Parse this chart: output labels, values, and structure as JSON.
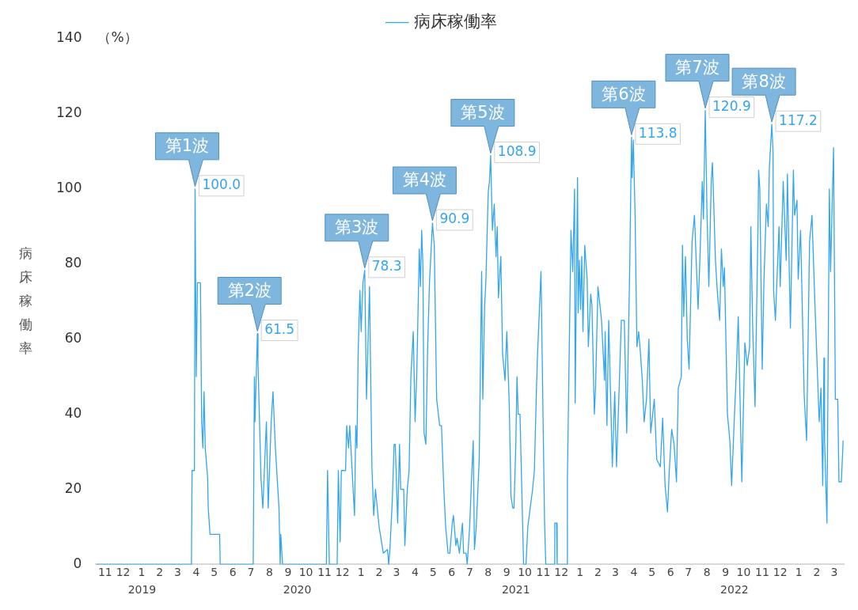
{
  "chart_data": {
    "type": "line",
    "ylabel": "病床稼働率",
    "legend": "top",
    "marker": "none",
    "xlim": [
      "2019-11-01",
      "2023-04-01"
    ],
    "xticks": [
      {
        "value": "2019-11-16",
        "label": "11"
      },
      {
        "value": "2019-12-16",
        "label": "12"
      },
      {
        "value": "2020-01-16",
        "label": "1"
      },
      {
        "value": "2020-02-15",
        "label": "2"
      },
      {
        "value": "2020-03-16",
        "label": "3"
      },
      {
        "value": "2020-04-16",
        "label": "4"
      },
      {
        "value": "2020-05-16",
        "label": "5"
      },
      {
        "value": "2020-06-16",
        "label": "6"
      },
      {
        "value": "2020-07-16",
        "label": "7"
      },
      {
        "value": "2020-08-16",
        "label": "8"
      },
      {
        "value": "2020-09-16",
        "label": "9"
      },
      {
        "value": "2020-10-16",
        "label": "10"
      },
      {
        "value": "2020-11-16",
        "label": "11"
      },
      {
        "value": "2020-12-16",
        "label": "12"
      },
      {
        "value": "2021-01-16",
        "label": "1"
      },
      {
        "value": "2021-02-15",
        "label": "2"
      },
      {
        "value": "2021-03-16",
        "label": "3"
      },
      {
        "value": "2021-04-16",
        "label": "4"
      },
      {
        "value": "2021-05-16",
        "label": "5"
      },
      {
        "value": "2021-06-16",
        "label": "6"
      },
      {
        "value": "2021-07-16",
        "label": "7"
      },
      {
        "value": "2021-08-16",
        "label": "8"
      },
      {
        "value": "2021-09-16",
        "label": "9"
      },
      {
        "value": "2021-10-16",
        "label": "10"
      },
      {
        "value": "2021-11-16",
        "label": "11"
      },
      {
        "value": "2021-12-16",
        "label": "12"
      },
      {
        "value": "2022-01-16",
        "label": "1"
      },
      {
        "value": "2022-02-15",
        "label": "2"
      },
      {
        "value": "2022-03-16",
        "label": "3"
      },
      {
        "value": "2022-04-16",
        "label": "4"
      },
      {
        "value": "2022-05-16",
        "label": "5"
      },
      {
        "value": "2022-06-16",
        "label": "6"
      },
      {
        "value": "2022-07-16",
        "label": "7"
      },
      {
        "value": "2022-08-16",
        "label": "8"
      },
      {
        "value": "2022-09-16",
        "label": "9"
      },
      {
        "value": "2022-10-16",
        "label": "10"
      },
      {
        "value": "2022-11-16",
        "label": "11"
      },
      {
        "value": "2022-12-16",
        "label": "12"
      },
      {
        "value": "2023-01-16",
        "label": "1"
      },
      {
        "value": "2023-02-15",
        "label": "2"
      },
      {
        "value": "2023-03-16",
        "label": "3"
      }
    ],
    "ylim": [
      0,
      140
    ],
    "yticks": [
      0,
      20,
      40,
      60,
      80,
      100,
      120,
      140
    ],
    "x2lim": [
      2019.08,
      2022.5
    ],
    "x2ticks": [
      {
        "value": 2019.29,
        "label": "2019"
      },
      2020,
      2021,
      2022
    ],
    "annotations": [
      "（%）",
      {
        "text": "第1波",
        "x": "2020-04-14",
        "y": 100
      },
      {
        "text": "第2波",
        "x": "2020-07-27",
        "y": 61.5
      },
      {
        "text": "第3波",
        "x": "2021-01-22",
        "y": 78.3
      },
      {
        "text": "第4波",
        "x": "2021-05-15",
        "y": 90.9
      },
      {
        "text": "第5波",
        "x": "2021-08-20",
        "y": 108.9
      },
      {
        "text": "第6波",
        "x": "2022-04-12",
        "y": 113.8
      },
      {
        "text": "第7波",
        "x": "2022-08-13",
        "y": 120.9
      },
      {
        "text": "第8波",
        "x": "2022-12-02",
        "y": 117.2
      }
    ],
    "series": [
      {
        "name": "病床稼働率",
        "color": "#33a6ee",
        "x": [
          "2019-11-01",
          "2020-04-08",
          "2020-04-09",
          "2020-04-13",
          "2020-04-14",
          "2020-04-16",
          "2020-04-18",
          "2020-04-23",
          "2020-04-25",
          "2020-04-27",
          "2020-04-29",
          "2020-05-01",
          "2020-05-05",
          "2020-05-06",
          "2020-05-09",
          "2020-05-25",
          "2020-05-26",
          "2020-07-20",
          "2020-07-22",
          "2020-07-23",
          "2020-07-27",
          "2020-07-28",
          "2020-08-02",
          "2020-08-05",
          "2020-08-11",
          "2020-08-14",
          "2020-08-19",
          "2020-08-22",
          "2020-08-26",
          "2020-09-01",
          "2020-09-03",
          "2020-09-04",
          "2020-09-07",
          "2020-11-19",
          "2020-11-21",
          "2020-11-24",
          "2020-12-07",
          "2020-12-09",
          "2020-12-12",
          "2020-12-14",
          "2020-12-21",
          "2020-12-23",
          "2020-12-26",
          "2020-12-28",
          "2021-01-05",
          "2021-01-07",
          "2021-01-09",
          "2021-01-11",
          "2021-01-14",
          "2021-01-16",
          "2021-01-19",
          "2021-01-22",
          "2021-01-25",
          "2021-01-30",
          "2021-02-03",
          "2021-02-06",
          "2021-02-09",
          "2021-02-15",
          "2021-02-22",
          "2021-03-01",
          "2021-03-03",
          "2021-03-05",
          "2021-03-09",
          "2021-03-12",
          "2021-03-14",
          "2021-03-18",
          "2021-03-21",
          "2021-03-23",
          "2021-03-28",
          "2021-03-30",
          "2021-04-03",
          "2021-04-06",
          "2021-04-09",
          "2021-04-13",
          "2021-04-16",
          "2021-04-19",
          "2021-04-23",
          "2021-04-25",
          "2021-04-27",
          "2021-04-29",
          "2021-05-01",
          "2021-05-04",
          "2021-05-07",
          "2021-05-10",
          "2021-05-15",
          "2021-05-18",
          "2021-05-22",
          "2021-05-27",
          "2021-05-30",
          "2021-06-03",
          "2021-06-06",
          "2021-06-10",
          "2021-06-13",
          "2021-06-17",
          "2021-06-19",
          "2021-06-23",
          "2021-06-25",
          "2021-06-29",
          "2021-07-04",
          "2021-07-06",
          "2021-07-10",
          "2021-07-12",
          "2021-07-16",
          "2021-07-19",
          "2021-07-22",
          "2021-07-24",
          "2021-07-27",
          "2021-08-01",
          "2021-08-05",
          "2021-08-07",
          "2021-08-10",
          "2021-08-12",
          "2021-08-16",
          "2021-08-18",
          "2021-08-20",
          "2021-08-23",
          "2021-08-26",
          "2021-08-29",
          "2021-08-31",
          "2021-09-02",
          "2021-09-06",
          "2021-09-09",
          "2021-09-13",
          "2021-09-16",
          "2021-09-20",
          "2021-09-23",
          "2021-09-26",
          "2021-09-28",
          "2021-10-01",
          "2021-10-03",
          "2021-10-05",
          "2021-10-08",
          "2021-10-11",
          "2021-10-14",
          "2021-10-18",
          "2021-10-21",
          "2021-10-29",
          "2021-11-01",
          "2021-11-04",
          "2021-11-06",
          "2021-11-12",
          "2021-11-15",
          "2021-11-18",
          "2021-11-20",
          "2021-12-04",
          "2021-12-05",
          "2021-12-08",
          "2021-12-09",
          "2021-12-25",
          "2021-12-26",
          "2022-01-01",
          "2022-01-04",
          "2022-01-07",
          "2022-01-08",
          "2022-01-12",
          "2022-01-13",
          "2022-01-15",
          "2022-01-17",
          "2022-01-19",
          "2022-01-21",
          "2022-01-24",
          "2022-01-28",
          "2022-01-30",
          "2022-02-03",
          "2022-02-05",
          "2022-02-09",
          "2022-02-11",
          "2022-02-15",
          "2022-02-21",
          "2022-02-26",
          "2022-02-27",
          "2022-03-02",
          "2022-03-05",
          "2022-03-11",
          "2022-03-15",
          "2022-03-18",
          "2022-03-22",
          "2022-03-26",
          "2022-03-31",
          "2022-04-04",
          "2022-04-09",
          "2022-04-12",
          "2022-04-13",
          "2022-04-15",
          "2022-04-18",
          "2022-04-21",
          "2022-04-24",
          "2022-04-27",
          "2022-04-30",
          "2022-05-03",
          "2022-05-07",
          "2022-05-11",
          "2022-05-14",
          "2022-05-20",
          "2022-05-24",
          "2022-05-30",
          "2022-06-03",
          "2022-06-07",
          "2022-06-11",
          "2022-06-14",
          "2022-06-18",
          "2022-06-22",
          "2022-06-26",
          "2022-06-29",
          "2022-07-04",
          "2022-07-06",
          "2022-07-08",
          "2022-07-11",
          "2022-07-14",
          "2022-07-17",
          "2022-07-22",
          "2022-07-26",
          "2022-08-01",
          "2022-08-04",
          "2022-08-08",
          "2022-08-10",
          "2022-08-13",
          "2022-08-16",
          "2022-08-19",
          "2022-08-23",
          "2022-08-25",
          "2022-08-30",
          "2022-09-02",
          "2022-09-06",
          "2022-09-09",
          "2022-09-12",
          "2022-09-14",
          "2022-09-19",
          "2022-09-23",
          "2022-09-26",
          "2022-09-30",
          "2022-10-04",
          "2022-10-07",
          "2022-10-13",
          "2022-10-18",
          "2022-10-22",
          "2022-10-26",
          "2022-10-28",
          "2022-10-31",
          "2022-11-04",
          "2022-11-09",
          "2022-11-10",
          "2022-11-12",
          "2022-11-16",
          "2022-11-19",
          "2022-11-23",
          "2022-11-26",
          "2022-11-28",
          "2022-12-02",
          "2022-12-04",
          "2022-12-05",
          "2022-12-08",
          "2022-12-14",
          "2022-12-16",
          "2022-12-21",
          "2022-12-26",
          "2022-12-28",
          "2023-01-02",
          "2023-01-07",
          "2023-01-09",
          "2023-01-13",
          "2023-01-15",
          "2023-01-19",
          "2023-01-23",
          "2023-01-25",
          "2023-01-29",
          "2023-02-03",
          "2023-02-07",
          "2023-02-12",
          "2023-02-17",
          "2023-02-19",
          "2023-02-22",
          "2023-02-25",
          "2023-02-27",
          "2023-02-28",
          "2023-03-04",
          "2023-03-08",
          "2023-03-10",
          "2023-03-15",
          "2023-03-18",
          "2023-03-22",
          "2023-03-24",
          "2023-03-28",
          "2023-03-31"
        ],
        "values": [
          0,
          0,
          25,
          25,
          100.0,
          50,
          75,
          75,
          38,
          31,
          46,
          31,
          23,
          15,
          8,
          8,
          0,
          0,
          50,
          38,
          61.5,
          53.5,
          23,
          15,
          38,
          15,
          38,
          46,
          31,
          15,
          0,
          8,
          0,
          0,
          25,
          0,
          0,
          25,
          6,
          25,
          25,
          37,
          31,
          37,
          13,
          37,
          31,
          56,
          73,
          62,
          75,
          78.3,
          44,
          74,
          26,
          13,
          20,
          10,
          3,
          4,
          0,
          4,
          17,
          32,
          32,
          11,
          32,
          20,
          20,
          5,
          20,
          25,
          50,
          62,
          38,
          52,
          84,
          74,
          89,
          80,
          35,
          32,
          58,
          75,
          90.9,
          85,
          44,
          37,
          37,
          20,
          10,
          3,
          3,
          11,
          13,
          5,
          7,
          3,
          11,
          3,
          3,
          0,
          10,
          22,
          33,
          4,
          10,
          28,
          78,
          44,
          69,
          75,
          99,
          102,
          108.9,
          89,
          96,
          82,
          90,
          71,
          82,
          56,
          49,
          62,
          43,
          18,
          15,
          15,
          32,
          50,
          40,
          40,
          20,
          0,
          0,
          10,
          20,
          25,
          44,
          55,
          78,
          44,
          11,
          0,
          0,
          11,
          11,
          0,
          0,
          22,
          89,
          78,
          100,
          43,
          103,
          67,
          81,
          68,
          82,
          62,
          85,
          76,
          58,
          72,
          69,
          40,
          47,
          74,
          65,
          49,
          62,
          37,
          65,
          26,
          46,
          26,
          45,
          65,
          65,
          35,
          79,
          113.8,
          103,
          113,
          93,
          58,
          62,
          56,
          49,
          38,
          44,
          60,
          35,
          44,
          28,
          26,
          39,
          21,
          14,
          25,
          36,
          32,
          22,
          47,
          50,
          85,
          66,
          82,
          60,
          52,
          86,
          93,
          68,
          81,
          102,
          92,
          120.9,
          93,
          74,
          102,
          107,
          81,
          73,
          65,
          84,
          74,
          79,
          40,
          33,
          21,
          37,
          52,
          66,
          22,
          59,
          53,
          58,
          90,
          64,
          42,
          90,
          105,
          100,
          52,
          76,
          96,
          90,
          106,
          117.2,
          110,
          73,
          65,
          90,
          74,
          102,
          81,
          104,
          63,
          105,
          93,
          97,
          76,
          89,
          60,
          45,
          33,
          86,
          93,
          69,
          47,
          38,
          47,
          21,
          55,
          33,
          11,
          100,
          78,
          111,
          44,
          44,
          22,
          22,
          33
        ],
        "value_labels": [
          null,
          null,
          null,
          null,
          "100.0",
          null,
          null,
          null,
          null,
          null,
          null,
          null,
          null,
          null,
          null,
          null,
          null,
          null,
          null,
          null,
          "61.5",
          null,
          null,
          null,
          null,
          null,
          null,
          null,
          null,
          null,
          null,
          null,
          null,
          null,
          null,
          null,
          null,
          null,
          null,
          null,
          null,
          null,
          null,
          null,
          null,
          null,
          null,
          null,
          null,
          null,
          null,
          "78.3",
          null,
          null,
          null,
          null,
          null,
          null,
          null,
          null,
          null,
          null,
          null,
          null,
          null,
          null,
          null,
          null,
          null,
          null,
          null,
          null,
          null,
          null,
          null,
          null,
          null,
          null,
          null,
          null,
          null,
          null,
          null,
          null,
          "90.9",
          null,
          null,
          null,
          null,
          null,
          null,
          null,
          null,
          null,
          null,
          null,
          null,
          null,
          null,
          null,
          null,
          null,
          null,
          null,
          null,
          null,
          null,
          null,
          null,
          null,
          null,
          null,
          null,
          null,
          "108.9",
          null,
          null,
          null,
          null,
          null,
          null,
          null,
          null,
          null,
          null,
          null,
          null,
          null,
          null,
          null,
          null,
          null,
          null,
          null,
          null,
          null,
          null,
          null,
          null,
          null,
          null,
          null,
          null,
          null,
          null,
          null,
          null,
          null,
          null,
          null,
          null,
          null,
          null,
          null,
          null,
          null,
          null,
          null,
          null,
          null,
          null,
          null,
          null,
          null,
          null,
          null,
          null,
          null,
          null,
          null,
          null,
          null,
          null,
          null,
          null,
          null,
          null,
          null,
          null,
          null,
          null,
          "113.8",
          null,
          null,
          null,
          null,
          null,
          null,
          null,
          null,
          null,
          null,
          null,
          null,
          null,
          null,
          null,
          null,
          null,
          null,
          null,
          null,
          null,
          null,
          null,
          null,
          null,
          null,
          null,
          null,
          null,
          null,
          null,
          null,
          null,
          null,
          "120.9",
          null,
          null,
          null,
          null,
          null,
          null,
          null,
          null,
          null,
          null,
          null,
          null,
          null,
          null,
          null,
          null,
          null,
          null,
          null,
          null,
          null,
          null,
          null,
          null,
          null,
          null,
          null,
          null,
          null,
          null,
          null,
          "117.2",
          null,
          null,
          null,
          null,
          null,
          null,
          null,
          null,
          null,
          null,
          null,
          null,
          null,
          null,
          null,
          null,
          null,
          null,
          null,
          null,
          null,
          null,
          null,
          null,
          null,
          null,
          null,
          null,
          null,
          null,
          null,
          null,
          null,
          null,
          null
        ]
      }
    ]
  }
}
